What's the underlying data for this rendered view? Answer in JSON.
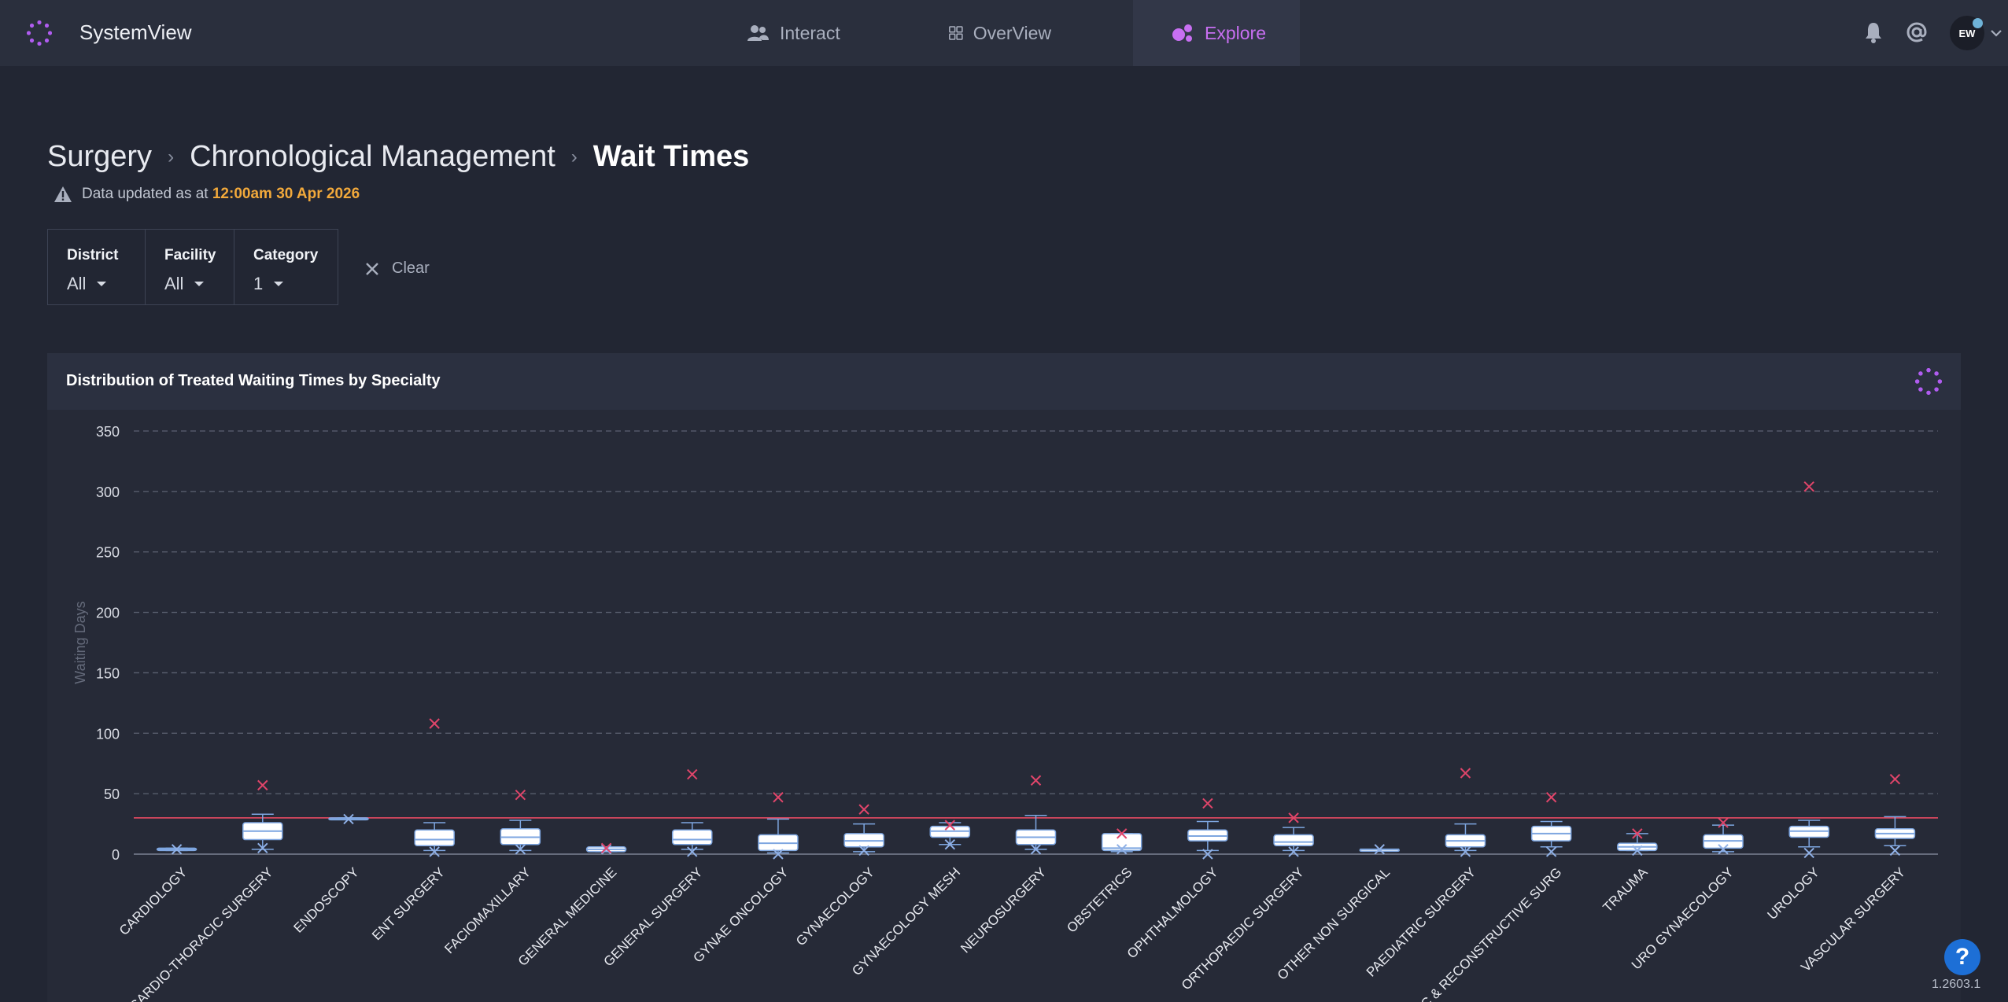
{
  "app": {
    "brand": "SystemView"
  },
  "nav": {
    "interact": "Interact",
    "overview": "OverView",
    "explore": "Explore",
    "active": "explore"
  },
  "user": {
    "initials": "EW"
  },
  "breadcrumb": [
    "Surgery",
    "Chronological Management",
    "Wait Times"
  ],
  "status": {
    "prefix": "Data updated as at",
    "timestamp": "12:00am 30 Apr 2026"
  },
  "filters": [
    {
      "label": "District",
      "value": "All"
    },
    {
      "label": "Facility",
      "value": "All"
    },
    {
      "label": "Category",
      "value": "1"
    }
  ],
  "clear_label": "Clear",
  "panel": {
    "title": "Distribution of Treated Waiting Times by Specialty"
  },
  "colors": {
    "accent": "#c86ff2",
    "highlight": "#f2a93b",
    "box_fill": "#ffffff",
    "box_stroke": "#7ea6e0",
    "target_line": "#d9485f",
    "outlier": "#e0456a",
    "help_button": "#1d6fd6"
  },
  "chart_data": {
    "type": "boxplot",
    "title": "Distribution of Treated Waiting Times by Specialty",
    "ylabel": "Waiting Days",
    "xlabel": "",
    "ylim": [
      0,
      350
    ],
    "yticks": [
      0,
      50,
      100,
      150,
      200,
      250,
      300,
      350
    ],
    "grid": true,
    "target_line": 30,
    "categories": [
      "CARDIOLOGY",
      "CARDIO-THORACIC SURGERY",
      "ENDOSCOPY",
      "ENT SURGERY",
      "FACIOMAXILLARY",
      "GENERAL MEDICINE",
      "GENERAL SURGERY",
      "GYNAE ONCOLOGY",
      "GYNAECOLOGY",
      "GYNAECOLOGY MESH",
      "NEUROSURGERY",
      "OBSTETRICS",
      "OPHTHALMOLOGY",
      "ORTHOPAEDIC SURGERY",
      "OTHER NON SURGICAL",
      "PAEDIATRIC SURGERY",
      "PLASTIC & RECONSTRUCTIVE SURG",
      "TRAUMA",
      "URO GYNAECOLOGY",
      "UROLOGY",
      "VASCULAR SURGERY"
    ],
    "boxes": [
      {
        "min": 3,
        "q1": 3,
        "median": 4,
        "q3": 5,
        "max": 5,
        "mean": 4,
        "outlier": null
      },
      {
        "min": 4,
        "q1": 12,
        "median": 19,
        "q3": 26,
        "max": 33,
        "mean": 5,
        "outlier": 57
      },
      {
        "min": 29,
        "q1": 29,
        "median": 29,
        "q3": 30,
        "max": 30,
        "mean": 29,
        "outlier": null
      },
      {
        "min": 3,
        "q1": 7,
        "median": 12,
        "q3": 20,
        "max": 26,
        "mean": 2,
        "outlier": 108
      },
      {
        "min": 3,
        "q1": 8,
        "median": 14,
        "q3": 21,
        "max": 28,
        "mean": 4,
        "outlier": 49
      },
      {
        "min": 2,
        "q1": 2,
        "median": 4,
        "q3": 6,
        "max": 6,
        "mean": 4,
        "outlier": 5
      },
      {
        "min": 4,
        "q1": 8,
        "median": 12,
        "q3": 20,
        "max": 26,
        "mean": 2,
        "outlier": 66
      },
      {
        "min": 1,
        "q1": 3,
        "median": 9,
        "q3": 16,
        "max": 29,
        "mean": 0,
        "outlier": 47
      },
      {
        "min": 2,
        "q1": 6,
        "median": 11,
        "q3": 17,
        "max": 25,
        "mean": 3,
        "outlier": 37
      },
      {
        "min": 8,
        "q1": 14,
        "median": 19,
        "q3": 23,
        "max": 26,
        "mean": 8,
        "outlier": 24
      },
      {
        "min": 4,
        "q1": 8,
        "median": 14,
        "q3": 20,
        "max": 32,
        "mean": 4,
        "outlier": 61
      },
      {
        "min": 2,
        "q1": 3,
        "median": 5,
        "q3": 17,
        "max": 17,
        "mean": 4,
        "outlier": 17
      },
      {
        "min": 3,
        "q1": 11,
        "median": 15,
        "q3": 20,
        "max": 27,
        "mean": 0,
        "outlier": 42
      },
      {
        "min": 3,
        "q1": 7,
        "median": 10,
        "q3": 16,
        "max": 22,
        "mean": 2,
        "outlier": 30
      },
      {
        "min": 3,
        "q1": 3,
        "median": 4,
        "q3": 4,
        "max": 4,
        "mean": 4,
        "outlier": null
      },
      {
        "min": 3,
        "q1": 6,
        "median": 11,
        "q3": 16,
        "max": 25,
        "mean": 2,
        "outlier": 67
      },
      {
        "min": 6,
        "q1": 11,
        "median": 17,
        "q3": 23,
        "max": 27,
        "mean": 2,
        "outlier": 47
      },
      {
        "min": 3,
        "q1": 3,
        "median": 6,
        "q3": 9,
        "max": 17,
        "mean": 3,
        "outlier": 17
      },
      {
        "min": 2,
        "q1": 5,
        "median": 11,
        "q3": 16,
        "max": 24,
        "mean": 4,
        "outlier": 26
      },
      {
        "min": 6,
        "q1": 14,
        "median": 19,
        "q3": 23,
        "max": 28,
        "mean": 1,
        "outlier": 304
      },
      {
        "min": 7,
        "q1": 13,
        "median": 17,
        "q3": 21,
        "max": 31,
        "mean": 3,
        "outlier": 62
      }
    ]
  },
  "footer": {
    "help_label": "?",
    "version": "1.2603.1"
  }
}
